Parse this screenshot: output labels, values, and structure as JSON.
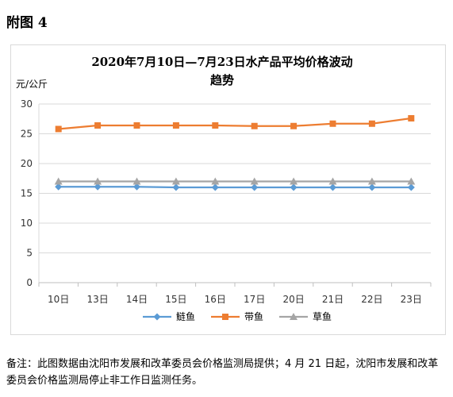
{
  "figure_label": "附图 4",
  "note": "备注：此图数据由沈阳市发展和改革委员会价格监测局提供；4 月 21 日起，沈阳市发展和改革委员会价格监测局停止非工作日监测任务。",
  "chart_data": {
    "type": "line",
    "title_line1": "2020年7月10日—7月23日水产品平均价格波动",
    "title_line2": "趋势",
    "ylabel": "元/公斤",
    "xlabel": "",
    "categories": [
      "10日",
      "13日",
      "14日",
      "15日",
      "16日",
      "17日",
      "20日",
      "21日",
      "22日",
      "23日"
    ],
    "ylim": [
      0,
      30
    ],
    "yticks": [
      0,
      5,
      10,
      15,
      20,
      25,
      30
    ],
    "grid": true,
    "legend_position": "bottom",
    "series": [
      {
        "name": "鲢鱼",
        "color": "#5b9bd5",
        "marker": "diamond",
        "values": [
          16.1,
          16.1,
          16.1,
          16.0,
          16.0,
          16.0,
          16.0,
          16.0,
          16.0,
          16.0
        ]
      },
      {
        "name": "带鱼",
        "color": "#ed7d31",
        "marker": "square",
        "values": [
          25.8,
          26.4,
          26.4,
          26.4,
          26.4,
          26.3,
          26.3,
          26.7,
          26.7,
          27.6
        ]
      },
      {
        "name": "草鱼",
        "color": "#a5a5a5",
        "marker": "triangle",
        "values": [
          17.0,
          17.0,
          17.0,
          17.0,
          17.0,
          17.0,
          17.0,
          17.0,
          17.0,
          17.0
        ]
      }
    ]
  }
}
